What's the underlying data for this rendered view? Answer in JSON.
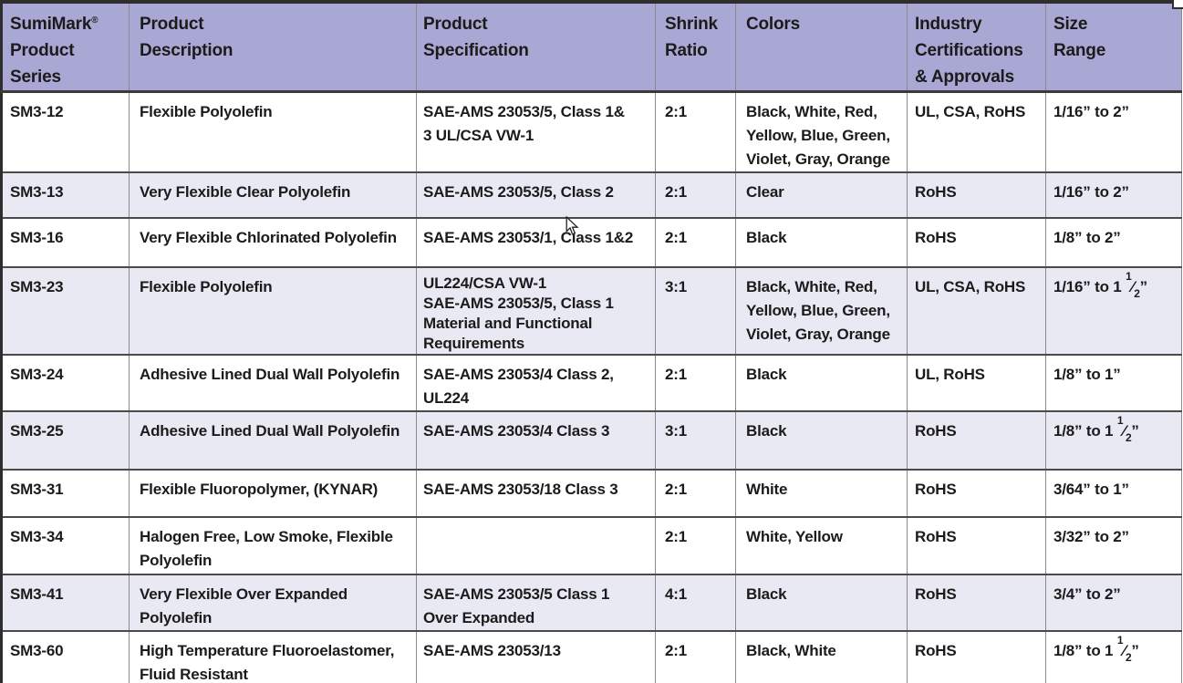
{
  "colors": {
    "header_bg": "#a9a7d3",
    "shaded_row_bg": "#e9e9f4",
    "border_dark": "#3a3a3a",
    "border_light": "#8b8b8b",
    "text_color": "#1b1b1b",
    "page_bg": "#ffffff"
  },
  "table": {
    "header": {
      "brand": "SumiMark",
      "brand_reg": "®",
      "brand_rest": "Product\nSeries",
      "columns": [
        [
          "Product",
          "Description"
        ],
        [
          "Product",
          "Specification"
        ],
        [
          "Shrink",
          "Ratio"
        ],
        [
          "Colors"
        ],
        [
          "Industry",
          "Certifications",
          "& Approvals"
        ],
        [
          "Size",
          "Range"
        ]
      ]
    },
    "rows": [
      {
        "series": "SM3-12",
        "description": [
          "Flexible Polyolefin"
        ],
        "specification": [
          "SAE-AMS 23053/5, Class 1&",
          "3 UL/CSA VW-1"
        ],
        "shrink_ratio": "2:1",
        "colors": [
          "Black, White, Red,",
          "Yellow, Blue, Green,",
          "Violet, Gray, Orange"
        ],
        "certifications": "UL, CSA, RoHS",
        "size_range": "1/16” to 2”",
        "shaded": false
      },
      {
        "series": "SM3-13",
        "description": [
          "Very Flexible Clear Polyolefin"
        ],
        "specification": [
          "SAE-AMS 23053/5, Class 2"
        ],
        "shrink_ratio": "2:1",
        "colors": [
          "Clear"
        ],
        "certifications": "RoHS",
        "size_range": "1/16” to 2”",
        "shaded": true
      },
      {
        "series": "SM3-16",
        "description": [
          "Very Flexible Chlorinated Polyolefin"
        ],
        "specification": [
          "SAE-AMS 23053/1, Class 1&2"
        ],
        "shrink_ratio": "2:1",
        "colors": [
          "Black"
        ],
        "certifications": "RoHS",
        "size_range": "1/8” to 2”",
        "shaded": false
      },
      {
        "series": "SM3-23",
        "description": [
          "Flexible Polyolefin"
        ],
        "specification": [
          "UL224/CSA VW-1",
          "SAE-AMS 23053/5, Class 1",
          "Material and Functional",
          "Requirements"
        ],
        "shrink_ratio": "3:1",
        "colors": [
          "Black, White, Red,",
          "Yellow, Blue, Green,",
          "Violet, Gray, Orange"
        ],
        "certifications": "UL, CSA, RoHS",
        "size_range": "1/16” to 1 ½”",
        "shaded": true
      },
      {
        "series": "SM3-24",
        "description": [
          "Adhesive Lined Dual Wall Polyolefin"
        ],
        "specification": [
          "SAE-AMS 23053/4 Class 2,",
          "UL224"
        ],
        "shrink_ratio": "2:1",
        "colors": [
          "Black"
        ],
        "certifications": "UL, RoHS",
        "size_range": "1/8” to 1”",
        "shaded": false
      },
      {
        "series": "SM3-25",
        "description": [
          "Adhesive Lined Dual Wall Polyolefin"
        ],
        "specification": [
          "SAE-AMS 23053/4 Class 3"
        ],
        "shrink_ratio": "3:1",
        "colors": [
          "Black"
        ],
        "certifications": "RoHS",
        "size_range": "1/8” to 1 ½”",
        "shaded": true
      },
      {
        "series": "SM3-31",
        "description": [
          "Flexible Fluoropolymer, (KYNAR)"
        ],
        "specification": [
          "SAE-AMS 23053/18 Class 3"
        ],
        "shrink_ratio": "2:1",
        "colors": [
          "White"
        ],
        "certifications": "RoHS",
        "size_range": "3/64” to 1”",
        "shaded": false
      },
      {
        "series": "SM3-34",
        "description": [
          "Halogen Free, Low Smoke, Flexible",
          "Polyolefin"
        ],
        "specification": [],
        "shrink_ratio": "2:1",
        "colors": [
          "White, Yellow"
        ],
        "certifications": "RoHS",
        "size_range": "3/32” to 2”",
        "shaded": false
      },
      {
        "series": "SM3-41",
        "description": [
          "Very Flexible Over Expanded",
          "Polyolefin"
        ],
        "specification": [
          "SAE-AMS 23053/5 Class 1",
          "Over Expanded"
        ],
        "shrink_ratio": "4:1",
        "colors": [
          "Black"
        ],
        "certifications": "RoHS",
        "size_range": "3/4” to 2”",
        "shaded": true
      },
      {
        "series": "SM3-60",
        "description": [
          "High Temperature Fluoroelastomer,",
          "Fluid Resistant"
        ],
        "specification": [
          "SAE-AMS 23053/13"
        ],
        "shrink_ratio": "2:1",
        "colors": [
          "Black, White"
        ],
        "certifications": "RoHS",
        "size_range": "1/8” to 1 ½”",
        "shaded": false
      }
    ]
  }
}
